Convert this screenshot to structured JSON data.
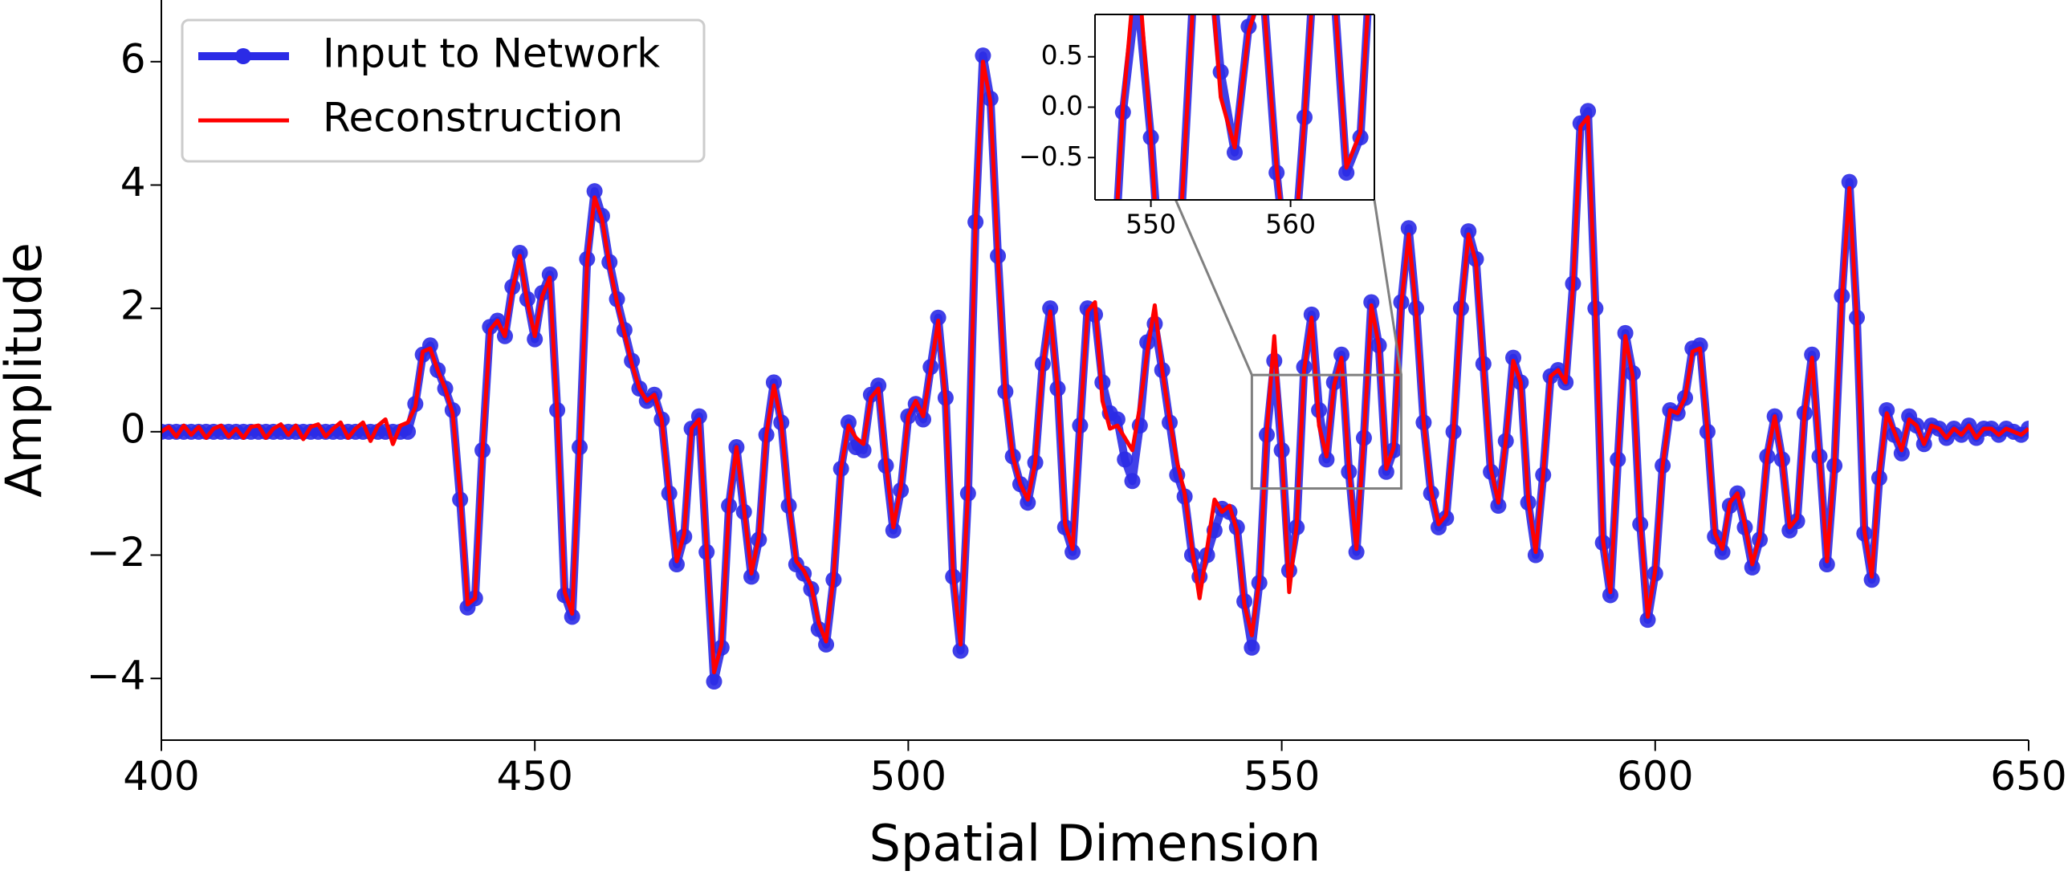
{
  "chart_data": {
    "type": "line",
    "xlabel": "Spatial Dimension",
    "ylabel": "Amplitude",
    "xlim": [
      400,
      650
    ],
    "ylim": [
      -5,
      7
    ],
    "xticks": [
      400,
      450,
      500,
      550,
      600,
      650
    ],
    "yticks": [
      {
        "value": -4,
        "label": "−4"
      },
      {
        "value": -2,
        "label": "−2"
      },
      0,
      2,
      4,
      6
    ],
    "legend": "upper left",
    "x": [
      400,
      401,
      402,
      403,
      404,
      405,
      406,
      407,
      408,
      409,
      410,
      411,
      412,
      413,
      414,
      415,
      416,
      417,
      418,
      419,
      420,
      421,
      422,
      423,
      424,
      425,
      426,
      427,
      428,
      429,
      430,
      431,
      432,
      433,
      434,
      435,
      436,
      437,
      438,
      439,
      440,
      441,
      442,
      443,
      444,
      445,
      446,
      447,
      448,
      449,
      450,
      451,
      452,
      453,
      454,
      455,
      456,
      457,
      458,
      459,
      460,
      461,
      462,
      463,
      464,
      465,
      466,
      467,
      468,
      469,
      470,
      471,
      472,
      473,
      474,
      475,
      476,
      477,
      478,
      479,
      480,
      481,
      482,
      483,
      484,
      485,
      486,
      487,
      488,
      489,
      490,
      491,
      492,
      493,
      494,
      495,
      496,
      497,
      498,
      499,
      500,
      501,
      502,
      503,
      504,
      505,
      506,
      507,
      508,
      509,
      510,
      511,
      512,
      513,
      514,
      515,
      516,
      517,
      518,
      519,
      520,
      521,
      522,
      523,
      524,
      525,
      526,
      527,
      528,
      529,
      530,
      531,
      532,
      533,
      534,
      535,
      536,
      537,
      538,
      539,
      540,
      541,
      542,
      543,
      544,
      545,
      546,
      547,
      548,
      549,
      550,
      551,
      552,
      553,
      554,
      555,
      556,
      557,
      558,
      559,
      560,
      561,
      562,
      563,
      564,
      565,
      566,
      567,
      568,
      569,
      570,
      571,
      572,
      573,
      574,
      575,
      576,
      577,
      578,
      579,
      580,
      581,
      582,
      583,
      584,
      585,
      586,
      587,
      588,
      589,
      590,
      591,
      592,
      593,
      594,
      595,
      596,
      597,
      598,
      599,
      600,
      601,
      602,
      603,
      604,
      605,
      606,
      607,
      608,
      609,
      610,
      611,
      612,
      613,
      614,
      615,
      616,
      617,
      618,
      619,
      620,
      621,
      622,
      623,
      624,
      625,
      626,
      627,
      628,
      629,
      630,
      631,
      632,
      633,
      634,
      635,
      636,
      637,
      638,
      639,
      640,
      641,
      642,
      643,
      644,
      645,
      646,
      647,
      648,
      649,
      650
    ],
    "series": [
      {
        "name": "Input to Network",
        "color": "#2b2be6",
        "marker": true,
        "values": [
          0,
          0,
          0,
          0,
          0,
          0,
          0,
          0,
          0,
          0,
          0,
          0,
          0,
          0,
          0,
          0,
          0,
          0,
          0,
          0,
          0,
          0,
          0,
          0,
          0,
          0,
          0,
          0,
          0,
          0,
          0,
          0,
          0,
          0,
          0.45,
          1.25,
          1.4,
          1.0,
          0.7,
          0.35,
          -1.1,
          -2.85,
          -2.7,
          -0.3,
          1.7,
          1.8,
          1.55,
          2.35,
          2.9,
          2.15,
          1.5,
          2.25,
          2.55,
          0.35,
          -2.65,
          -3.0,
          -0.25,
          2.8,
          3.9,
          3.5,
          2.75,
          2.15,
          1.65,
          1.15,
          0.7,
          0.5,
          0.6,
          0.2,
          -1.0,
          -2.15,
          -1.7,
          0.05,
          0.25,
          -1.95,
          -4.05,
          -3.5,
          -1.2,
          -0.25,
          -1.3,
          -2.35,
          -1.75,
          -0.05,
          0.8,
          0.15,
          -1.2,
          -2.15,
          -2.3,
          -2.55,
          -3.2,
          -3.45,
          -2.4,
          -0.6,
          0.15,
          -0.25,
          -0.3,
          0.6,
          0.75,
          -0.55,
          -1.6,
          -0.95,
          0.25,
          0.45,
          0.2,
          1.05,
          1.85,
          0.55,
          -2.35,
          -3.55,
          -1.0,
          3.4,
          6.1,
          5.4,
          2.85,
          0.65,
          -0.4,
          -0.85,
          -1.15,
          -0.5,
          1.1,
          2.0,
          0.7,
          -1.55,
          -1.95,
          0.1,
          2.0,
          1.9,
          0.8,
          0.3,
          0.2,
          -0.45,
          -0.8,
          0.1,
          1.45,
          1.75,
          1.0,
          0.15,
          -0.7,
          -1.05,
          -2.0,
          -2.35,
          -2.0,
          -1.6,
          -1.25,
          -1.3,
          -1.55,
          -2.75,
          -3.5,
          -2.45,
          -0.05,
          1.15,
          -0.3,
          -2.25,
          -1.55,
          1.05,
          1.9,
          0.35,
          -0.45,
          0.8,
          1.25,
          -0.65,
          -1.95,
          -0.1,
          2.1,
          1.4,
          -0.65,
          -0.3,
          2.1,
          3.3,
          2.0,
          0.15,
          -1.0,
          -1.55,
          -1.4,
          0.0,
          2.0,
          3.25,
          2.8,
          1.1,
          -0.65,
          -1.2,
          -0.15,
          1.2,
          0.8,
          -1.15,
          -2.0,
          -0.7,
          0.9,
          1.0,
          0.8,
          2.4,
          5.0,
          5.2,
          2.0,
          -1.8,
          -2.65,
          -0.45,
          1.6,
          0.95,
          -1.5,
          -3.05,
          -2.3,
          -0.55,
          0.35,
          0.3,
          0.55,
          1.35,
          1.4,
          0.0,
          -1.7,
          -1.95,
          -1.2,
          -1.0,
          -1.55,
          -2.2,
          -1.75,
          -0.4,
          0.25,
          -0.45,
          -1.6,
          -1.45,
          0.3,
          1.25,
          -0.4,
          -2.15,
          -0.55,
          2.2,
          4.05,
          1.85,
          -1.65,
          -2.4,
          -0.75,
          0.35,
          -0.05,
          -0.35,
          0.25,
          0.1,
          -0.2,
          0.1,
          0.05,
          -0.1,
          0.05,
          -0.05,
          0.1,
          -0.1,
          0.05,
          0.05,
          -0.05,
          0.05,
          0,
          -0.05,
          0.05
        ]
      },
      {
        "name": "Reconstruction",
        "color": "#ff0000",
        "marker": false,
        "values": [
          0,
          0.08,
          -0.08,
          0.1,
          -0.05,
          0.08,
          -0.1,
          0.05,
          0.1,
          -0.08,
          0.05,
          -0.1,
          0.08,
          0.1,
          -0.1,
          0.05,
          0.12,
          -0.05,
          0.1,
          -0.12,
          0.08,
          0.12,
          -0.08,
          0.05,
          0.15,
          -0.1,
          0.05,
          0.15,
          -0.15,
          0.1,
          0.2,
          -0.2,
          0.1,
          0.15,
          0.4,
          1.3,
          1.35,
          1.0,
          0.7,
          0.3,
          -1.0,
          -2.8,
          -2.7,
          -0.3,
          1.65,
          1.8,
          1.55,
          2.3,
          2.85,
          2.1,
          1.55,
          2.2,
          2.5,
          0.3,
          -2.6,
          -2.95,
          -0.2,
          2.75,
          3.8,
          3.45,
          2.7,
          2.1,
          1.6,
          1.1,
          0.7,
          0.5,
          0.6,
          0.2,
          -1.0,
          -2.1,
          -1.65,
          0.05,
          0.2,
          -1.9,
          -3.9,
          -3.45,
          -1.2,
          -0.25,
          -1.25,
          -2.3,
          -1.7,
          -0.05,
          0.75,
          0.15,
          -1.15,
          -2.1,
          -2.25,
          -2.5,
          -3.1,
          -3.4,
          -2.35,
          -0.6,
          0.1,
          -0.1,
          -0.2,
          0.55,
          0.7,
          -0.5,
          -1.55,
          -0.9,
          0.25,
          0.5,
          0.25,
          1.0,
          1.8,
          0.5,
          -2.3,
          -3.45,
          -0.95,
          3.35,
          6.0,
          5.35,
          2.8,
          0.6,
          -0.4,
          -0.85,
          -1.1,
          -0.5,
          1.05,
          1.95,
          0.7,
          -1.5,
          -1.9,
          0.1,
          1.95,
          2.1,
          0.5,
          0.05,
          0.1,
          -0.1,
          -0.3,
          0.4,
          1.3,
          2.05,
          1.0,
          0.2,
          -0.5,
          -1.0,
          -1.9,
          -2.7,
          -1.9,
          -1.1,
          -1.3,
          -1.2,
          -1.6,
          -2.8,
          -3.3,
          -2.4,
          0.0,
          1.55,
          -0.3,
          -2.6,
          -1.5,
          1.0,
          1.85,
          0.1,
          -0.4,
          0.75,
          1.2,
          -0.6,
          -1.9,
          -0.1,
          2.05,
          1.4,
          -0.6,
          -0.25,
          2.05,
          3.2,
          1.95,
          0.15,
          -0.95,
          -1.5,
          -1.35,
          0.0,
          1.95,
          3.2,
          2.75,
          1.05,
          -0.6,
          -1.15,
          -0.15,
          1.15,
          0.8,
          -1.1,
          -1.95,
          -0.7,
          0.9,
          1.0,
          0.8,
          2.35,
          4.95,
          5.1,
          1.95,
          -1.75,
          -2.6,
          -0.45,
          1.55,
          0.9,
          -1.45,
          -3.0,
          -2.25,
          -0.55,
          0.35,
          0.3,
          0.55,
          1.3,
          1.35,
          0.0,
          -1.65,
          -1.9,
          -1.15,
          -1.0,
          -1.5,
          -2.15,
          -1.7,
          -0.4,
          0.25,
          -0.45,
          -1.55,
          -1.4,
          0.3,
          1.2,
          -0.4,
          -2.1,
          -0.55,
          2.15,
          3.95,
          1.8,
          -1.6,
          -2.35,
          -0.7,
          0.3,
          0.0,
          -0.3,
          0.2,
          0.1,
          -0.2,
          0.1,
          0.05,
          -0.1,
          0.05,
          -0.05,
          0.1,
          -0.1,
          0.05,
          0.05,
          -0.05,
          0.05,
          0,
          -0.05,
          0.05
        ]
      }
    ],
    "inset": {
      "xlim": [
        546,
        566
      ],
      "ylim": [
        -0.92,
        0.92
      ],
      "xticks": [
        550,
        560
      ],
      "yticks": [
        {
          "value": -0.5,
          "label": "−0.5"
        },
        {
          "value": 0,
          "label": "0.0"
        },
        {
          "value": 0.5,
          "label": "0.5"
        }
      ]
    }
  }
}
